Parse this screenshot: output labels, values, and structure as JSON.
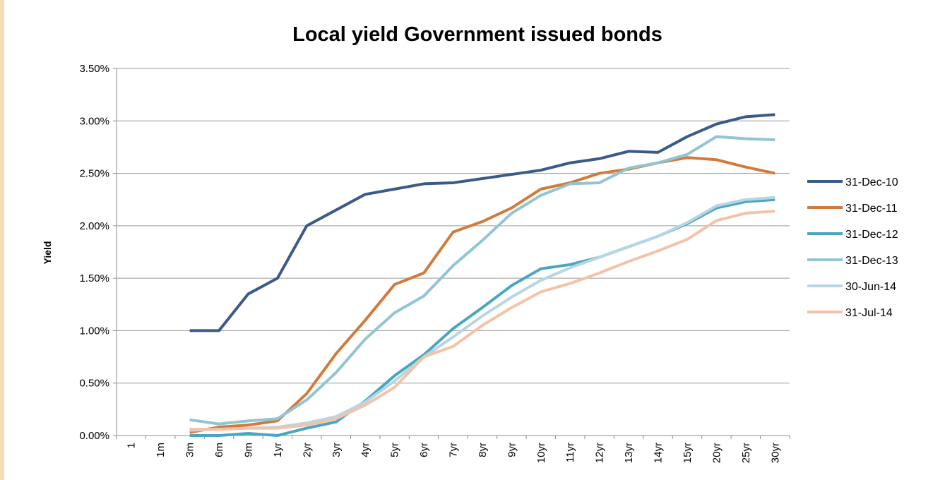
{
  "chart_data": {
    "type": "line",
    "title": "Local yield Government issued bonds",
    "xlabel": "",
    "ylabel": "Yield",
    "ylim": [
      0,
      0.035
    ],
    "yticks": [
      "0.00%",
      "0.50%",
      "1.00%",
      "1.50%",
      "2.00%",
      "2.50%",
      "3.00%",
      "3.50%"
    ],
    "grid": "horizontal",
    "legend_position": "right",
    "categories": [
      "1",
      "1m",
      "3m",
      "6m",
      "9m",
      "1yr",
      "2yr",
      "3yr",
      "4yr",
      "5yr",
      "6yr",
      "7yr",
      "8yr",
      "9yr",
      "10yr",
      "11yr",
      "12yr",
      "13yr",
      "14yr",
      "15yr",
      "20yr",
      "25yr",
      "30yr"
    ],
    "series": [
      {
        "name": "31-Dec-10",
        "color": "#3a5a88",
        "values": [
          null,
          null,
          0.01,
          0.01,
          0.0135,
          0.015,
          0.02,
          0.0215,
          0.023,
          0.0235,
          0.024,
          0.0241,
          0.0245,
          0.0249,
          0.0253,
          0.026,
          0.0264,
          0.0271,
          0.027,
          0.0285,
          0.0297,
          0.0304,
          0.0306
        ]
      },
      {
        "name": "31-Dec-11",
        "color": "#d07b3c",
        "values": [
          null,
          null,
          0.0003,
          0.0008,
          0.001,
          0.0014,
          0.004,
          0.0078,
          0.011,
          0.0144,
          0.0155,
          0.0194,
          0.0204,
          0.0217,
          0.0235,
          0.0241,
          0.025,
          0.0254,
          0.026,
          0.0265,
          0.0263,
          0.0256,
          0.025
        ]
      },
      {
        "name": "31-Dec-12",
        "color": "#4aa6c0",
        "values": [
          null,
          null,
          0.0,
          0.0,
          0.0002,
          0.0,
          0.0007,
          0.0013,
          0.0033,
          0.0057,
          0.0077,
          0.0102,
          0.0122,
          0.0143,
          0.0159,
          0.0163,
          0.017,
          0.018,
          0.019,
          0.0202,
          0.0217,
          0.0223,
          0.0225
        ]
      },
      {
        "name": "31-Dec-13",
        "color": "#93c4d2",
        "values": [
          null,
          null,
          0.0015,
          0.0011,
          0.0014,
          0.0016,
          0.0034,
          0.006,
          0.0092,
          0.0117,
          0.0133,
          0.0162,
          0.0186,
          0.0212,
          0.0229,
          0.024,
          0.0241,
          0.0255,
          0.026,
          0.0268,
          0.0285,
          0.0283,
          0.0282
        ]
      },
      {
        "name": "30-Jun-14",
        "color": "#b7d6e2",
        "values": [
          null,
          null,
          0.0005,
          0.0006,
          0.0007,
          0.0008,
          0.0012,
          0.0018,
          0.0032,
          0.0052,
          0.0075,
          0.0094,
          0.0114,
          0.0132,
          0.0148,
          0.016,
          0.017,
          0.018,
          0.019,
          0.0203,
          0.0219,
          0.0225,
          0.0227
        ]
      },
      {
        "name": "31-Jul-14",
        "color": "#f3c3a8",
        "values": [
          null,
          null,
          0.0006,
          0.0006,
          0.0007,
          0.0007,
          0.001,
          0.0016,
          0.0029,
          0.0046,
          0.0075,
          0.0085,
          0.0105,
          0.0122,
          0.0137,
          0.0145,
          0.0155,
          0.0166,
          0.0176,
          0.0187,
          0.0205,
          0.0212,
          0.0214
        ]
      }
    ]
  }
}
